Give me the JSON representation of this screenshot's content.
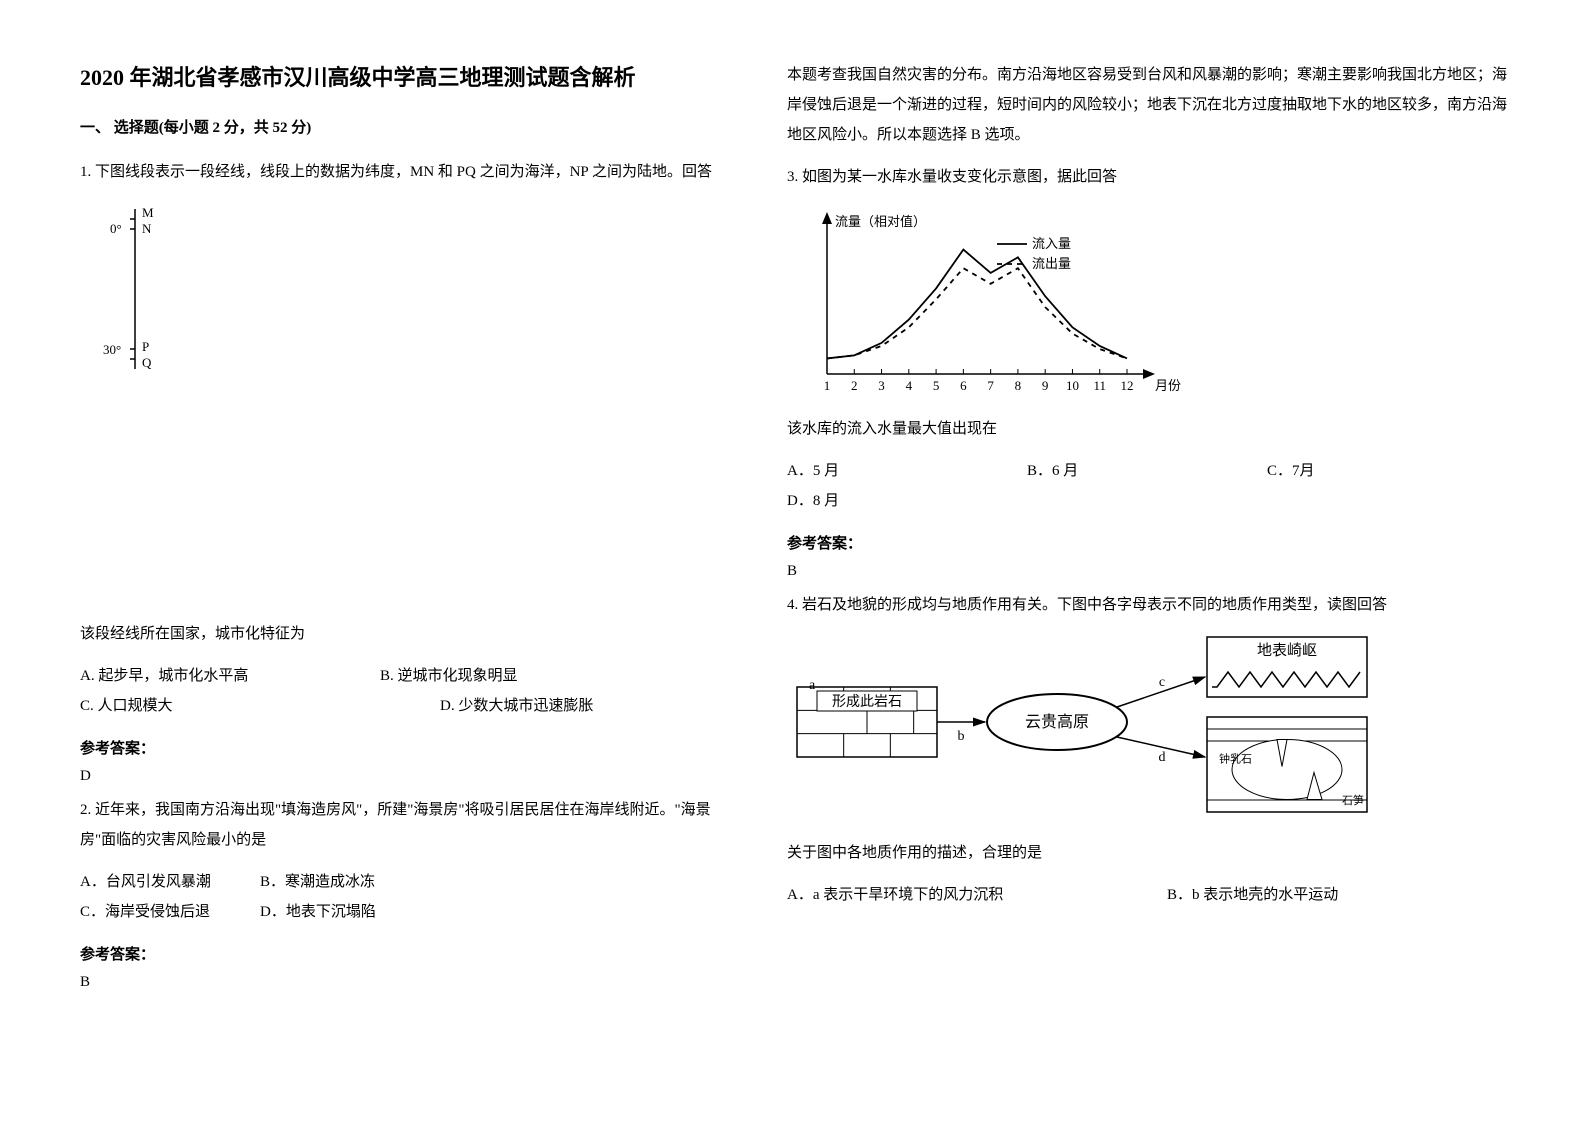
{
  "title": "2020 年湖北省孝感市汉川高级中学高三地理测试题含解析",
  "section1_header": "一、 选择题(每小题 2 分，共 52 分)",
  "q1": {
    "text": "1. 下图线段表示一段经线，线段上的数据为纬度，MN 和 PQ 之间为海洋，NP 之间为陆地。回答",
    "sub": "该段经线所在国家，城市化特征为",
    "optA": "A. 起步早，城市化水平高",
    "optB": "B. 逆城市化现象明显",
    "optC": "C. 人口规模大",
    "optD": "D. 少数大城市迅速膨胀",
    "answer_label": "参考答案：",
    "answer": "D",
    "diagram": {
      "tick0": "0°",
      "tick30": "30°",
      "labelM": "M",
      "labelN": "N",
      "labelP": "P",
      "labelQ": "Q"
    }
  },
  "q2": {
    "text": "2. 近年来，我国南方沿海出现\"填海造房风\"，所建\"海景房\"将吸引居民居住在海岸线附近。\"海景房\"面临的灾害风险最小的是",
    "optA": "A．台风引发风暴潮",
    "optB": "B．寒潮造成冰冻",
    "optC": "C．海岸受侵蚀后退",
    "optD": "D．地表下沉塌陷",
    "answer_label": "参考答案：",
    "answer": "B"
  },
  "col2_intro": "本题考查我国自然灾害的分布。南方沿海地区容易受到台风和风暴潮的影响；寒潮主要影响我国北方地区；海岸侵蚀后退是一个渐进的过程，短时间内的风险较小；地表下沉在北方过度抽取地下水的地区较多，南方沿海地区风险小。所以本题选择 B 选项。",
  "q3": {
    "text": "3. 如图为某一水库水量收支变化示意图，据此回答",
    "sub": "该水库的流入水量最大值出现在",
    "optA": "A．5 月",
    "optB": "B．6 月",
    "optC": "C．7月",
    "optD": "D．8 月",
    "answer_label": "参考答案：",
    "answer": "B",
    "chart": {
      "ylabel": "流量（相对值）",
      "xlabel": "月份",
      "xticks": [
        "1",
        "2",
        "3",
        "4",
        "5",
        "6",
        "7",
        "8",
        "9",
        "10",
        "11",
        "12"
      ],
      "legend_in": "流入量",
      "legend_out": "流出量",
      "line_in": [
        1.0,
        1.2,
        2.0,
        3.5,
        5.5,
        8.0,
        6.5,
        7.5,
        5.0,
        3.0,
        1.8,
        1.0
      ],
      "line_out": [
        1.0,
        1.2,
        1.8,
        3.0,
        4.8,
        6.8,
        5.8,
        6.8,
        4.3,
        2.6,
        1.6,
        1.0
      ],
      "line_color": "#000000",
      "dash_pattern": "5,5",
      "axis_color": "#000000",
      "font_size": 13
    }
  },
  "q4": {
    "text": "4. 岩石及地貌的形成均与地质作用有关。下图中各字母表示不同的地质作用类型，读图回答",
    "sub": "关于图中各地质作用的描述，合理的是",
    "optA": "A．a 表示干旱环境下的风力沉积",
    "optB": "B．b 表示地壳的水平运动",
    "diagram": {
      "box1": "形成此岩石",
      "box2": "云贵高原",
      "box3": "地表崎岖",
      "lbl_a": "a",
      "lbl_b": "b",
      "lbl_c": "c",
      "lbl_d": "d",
      "lbl_stal1": "钟乳石",
      "lbl_stal2": "石笋",
      "box_bg": "#ffffff",
      "box_border": "#000000"
    }
  }
}
